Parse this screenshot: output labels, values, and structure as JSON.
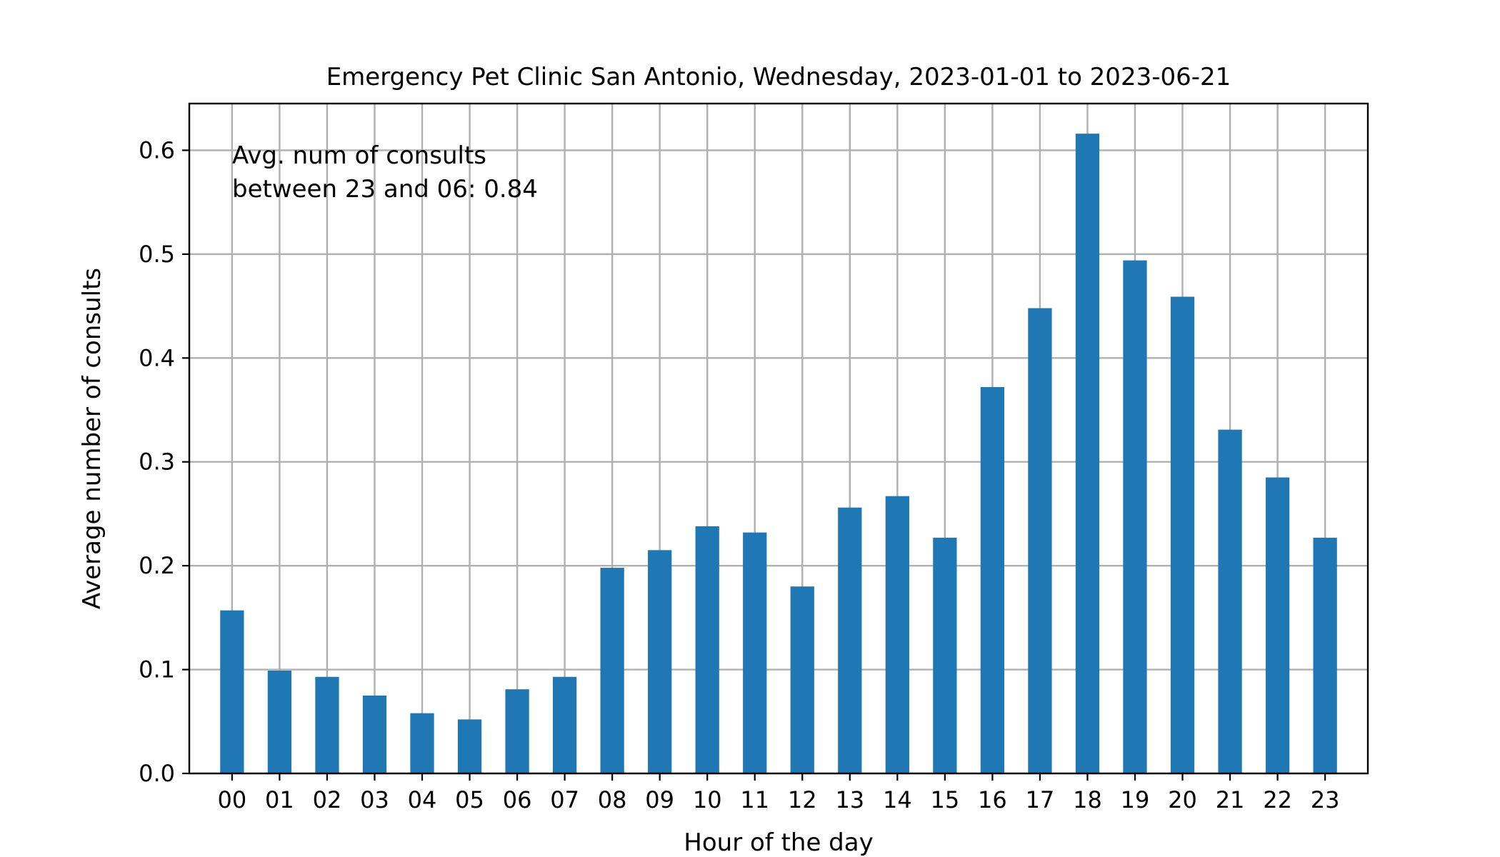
{
  "chart_data": {
    "type": "bar",
    "title": "Emergency Pet Clinic San Antonio, Wednesday, 2023-01-01 to 2023-06-21",
    "xlabel": "Hour of the day",
    "ylabel": "Average number of consults",
    "annotation_lines": [
      "Avg. num of consults",
      "between 23 and 06: 0.84"
    ],
    "categories": [
      "00",
      "01",
      "02",
      "03",
      "04",
      "05",
      "06",
      "07",
      "08",
      "09",
      "10",
      "11",
      "12",
      "13",
      "14",
      "15",
      "16",
      "17",
      "18",
      "19",
      "20",
      "21",
      "22",
      "23"
    ],
    "values": [
      0.157,
      0.099,
      0.093,
      0.075,
      0.058,
      0.052,
      0.081,
      0.093,
      0.198,
      0.215,
      0.238,
      0.232,
      0.18,
      0.256,
      0.267,
      0.227,
      0.372,
      0.448,
      0.616,
      0.494,
      0.459,
      0.331,
      0.285,
      0.227
    ],
    "ylim": [
      0,
      0.645
    ],
    "yticks": [
      0.0,
      0.1,
      0.2,
      0.3,
      0.4,
      0.5,
      0.6
    ],
    "ytick_labels": [
      "0.0",
      "0.1",
      "0.2",
      "0.3",
      "0.4",
      "0.5",
      "0.6"
    ],
    "grid": true,
    "bar_color": "#1f77b4"
  }
}
